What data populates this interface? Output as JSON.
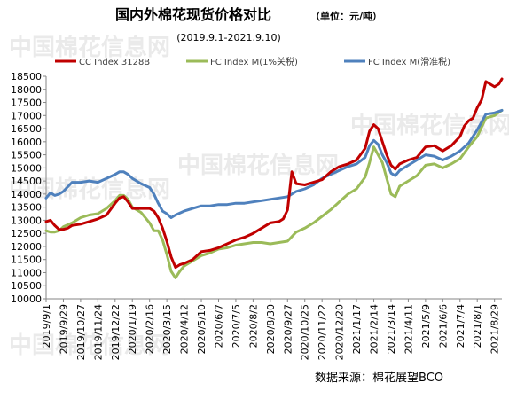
{
  "chart_data": {
    "type": "line",
    "title": "国内外棉花现货价格对比",
    "unit_note": "（单位：元/吨）",
    "subtitle": "(2019.9.1-2021.9.10)",
    "source": "数据来源：棉花展望BCO",
    "watermark": "中国棉花信息网",
    "legend_position": "top",
    "grid": false,
    "ylim": [
      10000,
      18500
    ],
    "yticks": [
      10000,
      10500,
      11000,
      11500,
      12000,
      12500,
      13000,
      13500,
      14000,
      14500,
      15000,
      15500,
      16000,
      16500,
      17000,
      17500,
      18000,
      18500
    ],
    "x_ticks": [
      "2019/9/1",
      "2019/9/29",
      "2019/10/27",
      "2019/11/24",
      "2019/12/22",
      "2020/1/19",
      "2020/2/16",
      "2020/3/15",
      "2020/4/12",
      "2020/5/10",
      "2020/6/7",
      "2020/7/5",
      "2020/8/2",
      "2020/8/30",
      "2020/9/27",
      "2020/10/25",
      "2020/11/22",
      "2020/12/20",
      "2021/1/17",
      "2021/2/14",
      "2021/3/14",
      "2021/4/11",
      "2021/5/9",
      "2021/6/6",
      "2021/7/4",
      "2021/8/1",
      "2021/8/29"
    ],
    "series": [
      {
        "name": "CC Index 3128B",
        "color": "#c00000",
        "points": [
          [
            "2019/9/1",
            12950
          ],
          [
            "2019/9/8",
            13000
          ],
          [
            "2019/9/15",
            12800
          ],
          [
            "2019/9/22",
            12650
          ],
          [
            "2019/9/29",
            12650
          ],
          [
            "2019/10/6",
            12700
          ],
          [
            "2019/10/13",
            12800
          ],
          [
            "2019/10/27",
            12850
          ],
          [
            "2019/11/10",
            12950
          ],
          [
            "2019/11/24",
            13050
          ],
          [
            "2019/12/8",
            13200
          ],
          [
            "2019/12/22",
            13650
          ],
          [
            "2019/12/29",
            13850
          ],
          [
            "2020/1/5",
            13900
          ],
          [
            "2020/1/12",
            13700
          ],
          [
            "2020/1/19",
            13450
          ],
          [
            "2020/2/2",
            13450
          ],
          [
            "2020/2/16",
            13450
          ],
          [
            "2020/2/23",
            13350
          ],
          [
            "2020/3/1",
            13100
          ],
          [
            "2020/3/8",
            12700
          ],
          [
            "2020/3/15",
            12200
          ],
          [
            "2020/3/22",
            11600
          ],
          [
            "2020/3/29",
            11200
          ],
          [
            "2020/4/5",
            11300
          ],
          [
            "2020/4/12",
            11350
          ],
          [
            "2020/4/26",
            11500
          ],
          [
            "2020/5/10",
            11800
          ],
          [
            "2020/5/24",
            11850
          ],
          [
            "2020/6/7",
            11950
          ],
          [
            "2020/6/21",
            12100
          ],
          [
            "2020/7/5",
            12250
          ],
          [
            "2020/7/19",
            12350
          ],
          [
            "2020/8/2",
            12500
          ],
          [
            "2020/8/16",
            12700
          ],
          [
            "2020/8/30",
            12900
          ],
          [
            "2020/9/13",
            12950
          ],
          [
            "2020/9/20",
            13050
          ],
          [
            "2020/9/27",
            13400
          ],
          [
            "2020/10/4",
            14850
          ],
          [
            "2020/10/11",
            14400
          ],
          [
            "2020/10/25",
            14350
          ],
          [
            "2020/11/8",
            14450
          ],
          [
            "2020/11/22",
            14550
          ],
          [
            "2020/12/6",
            14850
          ],
          [
            "2020/12/20",
            15050
          ],
          [
            "2021/1/3",
            15150
          ],
          [
            "2021/1/17",
            15300
          ],
          [
            "2021/1/31",
            15750
          ],
          [
            "2021/2/7",
            16400
          ],
          [
            "2021/2/14",
            16650
          ],
          [
            "2021/2/21",
            16500
          ],
          [
            "2021/2/28",
            16000
          ],
          [
            "2021/3/7",
            15500
          ],
          [
            "2021/3/14",
            15100
          ],
          [
            "2021/3/21",
            14950
          ],
          [
            "2021/3/28",
            15150
          ],
          [
            "2021/4/11",
            15300
          ],
          [
            "2021/4/25",
            15400
          ],
          [
            "2021/5/9",
            15800
          ],
          [
            "2021/5/23",
            15850
          ],
          [
            "2021/6/6",
            15650
          ],
          [
            "2021/6/20",
            15850
          ],
          [
            "2021/7/4",
            16200
          ],
          [
            "2021/7/11",
            16600
          ],
          [
            "2021/7/18",
            16800
          ],
          [
            "2021/7/25",
            16900
          ],
          [
            "2021/8/1",
            17300
          ],
          [
            "2021/8/8",
            17600
          ],
          [
            "2021/8/15",
            18300
          ],
          [
            "2021/8/22",
            18200
          ],
          [
            "2021/8/29",
            18100
          ],
          [
            "2021/9/5",
            18200
          ],
          [
            "2021/9/10",
            18400
          ]
        ]
      },
      {
        "name": "FC Index M(1%关税)",
        "color": "#9bbb59",
        "points": [
          [
            "2019/9/1",
            12600
          ],
          [
            "2019/9/8",
            12550
          ],
          [
            "2019/9/15",
            12550
          ],
          [
            "2019/9/22",
            12600
          ],
          [
            "2019/9/29",
            12750
          ],
          [
            "2019/10/13",
            12900
          ],
          [
            "2019/10/27",
            13100
          ],
          [
            "2019/11/10",
            13200
          ],
          [
            "2019/11/24",
            13250
          ],
          [
            "2019/12/8",
            13450
          ],
          [
            "2019/12/22",
            13750
          ],
          [
            "2019/12/29",
            13950
          ],
          [
            "2020/1/5",
            13950
          ],
          [
            "2020/1/12",
            13800
          ],
          [
            "2020/1/19",
            13500
          ],
          [
            "2020/2/2",
            13300
          ],
          [
            "2020/2/16",
            12900
          ],
          [
            "2020/2/23",
            12600
          ],
          [
            "2020/3/1",
            12600
          ],
          [
            "2020/3/8",
            12250
          ],
          [
            "2020/3/15",
            11700
          ],
          [
            "2020/3/22",
            11050
          ],
          [
            "2020/3/29",
            10800
          ],
          [
            "2020/4/5",
            11050
          ],
          [
            "2020/4/12",
            11250
          ],
          [
            "2020/4/26",
            11450
          ],
          [
            "2020/5/10",
            11650
          ],
          [
            "2020/5/24",
            11750
          ],
          [
            "2020/6/7",
            11900
          ],
          [
            "2020/6/21",
            11950
          ],
          [
            "2020/7/5",
            12050
          ],
          [
            "2020/7/19",
            12100
          ],
          [
            "2020/8/2",
            12150
          ],
          [
            "2020/8/16",
            12150
          ],
          [
            "2020/8/30",
            12100
          ],
          [
            "2020/9/13",
            12150
          ],
          [
            "2020/9/27",
            12200
          ],
          [
            "2020/10/11",
            12550
          ],
          [
            "2020/10/25",
            12700
          ],
          [
            "2020/11/8",
            12900
          ],
          [
            "2020/11/22",
            13150
          ],
          [
            "2020/12/6",
            13400
          ],
          [
            "2020/12/20",
            13700
          ],
          [
            "2021/1/3",
            14000
          ],
          [
            "2021/1/17",
            14200
          ],
          [
            "2021/1/31",
            14650
          ],
          [
            "2021/2/7",
            15200
          ],
          [
            "2021/2/14",
            15800
          ],
          [
            "2021/2/21",
            15500
          ],
          [
            "2021/2/28",
            15200
          ],
          [
            "2021/3/7",
            14600
          ],
          [
            "2021/3/14",
            14000
          ],
          [
            "2021/3/21",
            13900
          ],
          [
            "2021/3/28",
            14300
          ],
          [
            "2021/4/11",
            14500
          ],
          [
            "2021/4/25",
            14700
          ],
          [
            "2021/5/9",
            15100
          ],
          [
            "2021/5/23",
            15150
          ],
          [
            "2021/6/6",
            15000
          ],
          [
            "2021/6/20",
            15150
          ],
          [
            "2021/7/4",
            15350
          ],
          [
            "2021/7/18",
            15800
          ],
          [
            "2021/8/1",
            16200
          ],
          [
            "2021/8/15",
            16900
          ],
          [
            "2021/8/29",
            17000
          ],
          [
            "2021/9/10",
            17200
          ]
        ]
      },
      {
        "name": "FC Index M(滑准税)",
        "color": "#4f81bd",
        "points": [
          [
            "2019/9/1",
            13850
          ],
          [
            "2019/9/8",
            14050
          ],
          [
            "2019/9/15",
            13950
          ],
          [
            "2019/9/22",
            14000
          ],
          [
            "2019/9/29",
            14100
          ],
          [
            "2019/10/13",
            14450
          ],
          [
            "2019/10/27",
            14450
          ],
          [
            "2019/11/10",
            14500
          ],
          [
            "2019/11/24",
            14450
          ],
          [
            "2019/12/8",
            14600
          ],
          [
            "2019/12/22",
            14750
          ],
          [
            "2019/12/29",
            14850
          ],
          [
            "2020/1/5",
            14850
          ],
          [
            "2020/1/12",
            14750
          ],
          [
            "2020/1/19",
            14600
          ],
          [
            "2020/2/2",
            14400
          ],
          [
            "2020/2/16",
            14250
          ],
          [
            "2020/2/23",
            14000
          ],
          [
            "2020/3/1",
            13650
          ],
          [
            "2020/3/8",
            13350
          ],
          [
            "2020/3/15",
            13250
          ],
          [
            "2020/3/22",
            13100
          ],
          [
            "2020/3/29",
            13200
          ],
          [
            "2020/4/12",
            13350
          ],
          [
            "2020/4/26",
            13450
          ],
          [
            "2020/5/10",
            13550
          ],
          [
            "2020/5/24",
            13550
          ],
          [
            "2020/6/7",
            13600
          ],
          [
            "2020/6/21",
            13600
          ],
          [
            "2020/7/5",
            13650
          ],
          [
            "2020/7/19",
            13650
          ],
          [
            "2020/8/2",
            13700
          ],
          [
            "2020/8/16",
            13750
          ],
          [
            "2020/8/30",
            13800
          ],
          [
            "2020/9/13",
            13850
          ],
          [
            "2020/9/27",
            13900
          ],
          [
            "2020/10/11",
            14100
          ],
          [
            "2020/10/25",
            14200
          ],
          [
            "2020/11/8",
            14350
          ],
          [
            "2020/11/22",
            14600
          ],
          [
            "2020/12/6",
            14750
          ],
          [
            "2020/12/20",
            14900
          ],
          [
            "2021/1/3",
            15050
          ],
          [
            "2021/1/17",
            15150
          ],
          [
            "2021/1/31",
            15400
          ],
          [
            "2021/2/7",
            15850
          ],
          [
            "2021/2/14",
            16050
          ],
          [
            "2021/2/21",
            15900
          ],
          [
            "2021/2/28",
            15500
          ],
          [
            "2021/3/7",
            15200
          ],
          [
            "2021/3/14",
            14800
          ],
          [
            "2021/3/21",
            14700
          ],
          [
            "2021/3/28",
            14900
          ],
          [
            "2021/4/11",
            15100
          ],
          [
            "2021/4/25",
            15300
          ],
          [
            "2021/5/9",
            15500
          ],
          [
            "2021/5/23",
            15450
          ],
          [
            "2021/6/6",
            15300
          ],
          [
            "2021/6/20",
            15450
          ],
          [
            "2021/7/4",
            15650
          ],
          [
            "2021/7/18",
            15950
          ],
          [
            "2021/8/1",
            16450
          ],
          [
            "2021/8/15",
            17050
          ],
          [
            "2021/8/29",
            17100
          ],
          [
            "2021/9/10",
            17200
          ]
        ]
      }
    ]
  }
}
